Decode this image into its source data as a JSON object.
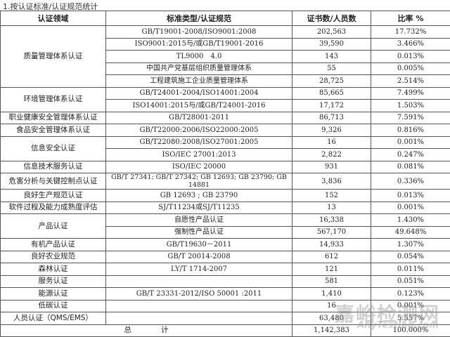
{
  "caption": "1.按认证标准/认证规范统计",
  "headers": [
    "认证领域",
    "标准类型/认证规范",
    "证书数/人员数",
    "比率 %"
  ],
  "groups": [
    {
      "field": "质量管理体系认证",
      "rows": [
        {
          "std": "GB/T19001-2008/ISO9001:2008",
          "count": "202,563",
          "rate": "17.732%"
        },
        {
          "std": "ISO9001:2015与/或GB/T19001-2016",
          "count": "39,590",
          "rate": "3.466%"
        },
        {
          "std": "TL9000　4.0",
          "count": "143",
          "rate": "0.013%"
        },
        {
          "std": "中国共产党基层组织质量管理体系",
          "count": "55",
          "rate": "0.005%"
        },
        {
          "std": "工程建筑施工企业质量管理体系",
          "count": "28,725",
          "rate": "2.514%"
        }
      ]
    },
    {
      "field": "环境管理体系认证",
      "rows": [
        {
          "std": "GB/T24001-2004/ISO14001:2004",
          "count": "85,665",
          "rate": "7.499%"
        },
        {
          "std": "ISO14001:2015与/或GB/T24001-2016",
          "count": "17,172",
          "rate": "1.503%"
        }
      ]
    },
    {
      "field": "职业健康安全管理体系认证",
      "rows": [
        {
          "std": "GB/T28001-2011",
          "count": "86,713",
          "rate": "7.591%"
        }
      ]
    },
    {
      "field": "食品安全管理体系认证",
      "rows": [
        {
          "std": "GB/T22000:2006/ISO22000:2005",
          "count": "9,326",
          "rate": "0.816%"
        }
      ]
    },
    {
      "field": "信息安全认证",
      "rows": [
        {
          "std": "GB/T22080:2008/ISO27001:2005",
          "count": "16",
          "rate": "0.001%"
        },
        {
          "std": "ISO/IEC 27001:2013",
          "count": "2,822",
          "rate": "0.247%"
        }
      ]
    },
    {
      "field": "信息技术服务认证",
      "rows": [
        {
          "std": "ISO/IEC 20000",
          "count": "931",
          "rate": "0.081%"
        }
      ]
    },
    {
      "field": "危害分析与关键控制点认证",
      "rows": [
        {
          "std": "GB/T 27341; GB/T 27342; GB 12693; GB 23790; GB 14881",
          "count": "3,836",
          "rate": "0.336%"
        }
      ]
    },
    {
      "field": "良好生产规范认证",
      "rows": [
        {
          "std": "GB 12693 ; GB 23790",
          "count": "152",
          "rate": "0.013%"
        }
      ]
    },
    {
      "field": "软件过程及能力成熟度评估",
      "rows": [
        {
          "std": "SJ/T11234或SJ/T11235",
          "count": "13",
          "rate": "0.001%"
        }
      ]
    },
    {
      "field": "产品认证",
      "rows": [
        {
          "std": "自愿性产品认证",
          "count": "16,338",
          "rate": "1.430%"
        },
        {
          "std": "强制性产品认证",
          "count": "567,170",
          "rate": "49.648%"
        }
      ]
    },
    {
      "field": "有机产品认证",
      "rows": [
        {
          "std": "GB/T19630－2011",
          "count": "14,933",
          "rate": "1.307%"
        }
      ]
    },
    {
      "field": "良好农业规范",
      "rows": [
        {
          "std": "GB/T 20014-2008",
          "count": "612",
          "rate": "0.054%"
        }
      ]
    },
    {
      "field": "森林认证",
      "rows": [
        {
          "std": "LY/T 1714-2007",
          "count": "121",
          "rate": "0.011%"
        }
      ]
    },
    {
      "field": "服务认证",
      "rows": [
        {
          "std": "",
          "count": "581",
          "rate": "0.051%"
        }
      ]
    },
    {
      "field": "能源认证",
      "rows": [
        {
          "std": "GB/T 23331-2012/ISO 50001 :2011",
          "count": "1,410",
          "rate": "0.123%"
        }
      ]
    },
    {
      "field": "低碳认证",
      "rows": [
        {
          "std": "",
          "count": "16",
          "rate": "0.001%"
        }
      ]
    },
    {
      "field": "人员认证（QMS/EMS）",
      "rows": [
        {
          "std": "",
          "count": "63,480",
          "rate": "5.557%"
        }
      ]
    }
  ],
  "total": {
    "label": "总　　　　计",
    "count": "1,142,383",
    "rate": "100.000%"
  },
  "watermark": {
    "cn": "嘉峪检测网",
    "en": "AnyTesting.com"
  }
}
